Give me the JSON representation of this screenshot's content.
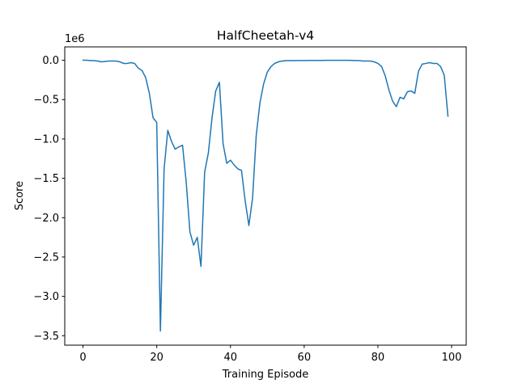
{
  "chart_data": {
    "type": "line",
    "title": "HalfCheetah-v4",
    "xlabel": "Training Episode",
    "ylabel": "Score",
    "y_scale_label": "1e6",
    "grid": false,
    "xlim": [
      -4.95,
      103.95
    ],
    "ylim": [
      -3.62,
      0.17
    ],
    "xticks": [
      0,
      20,
      40,
      60,
      80,
      100
    ],
    "xtick_labels": [
      "0",
      "20",
      "40",
      "60",
      "80",
      "100"
    ],
    "yticks": [
      0.0,
      -0.5,
      -1.0,
      -1.5,
      -2.0,
      -2.5,
      -3.0,
      -3.5
    ],
    "ytick_labels": [
      "0.0",
      "−0.5",
      "−1.0",
      "−1.5",
      "−2.0",
      "−2.5",
      "−3.0",
      "−3.5"
    ],
    "series": [
      {
        "name": "Score",
        "color": "#1f77b4",
        "x": [
          0,
          1,
          2,
          3,
          4,
          5,
          6,
          7,
          8,
          9,
          10,
          11,
          12,
          13,
          14,
          15,
          16,
          17,
          18,
          19,
          20,
          21,
          22,
          23,
          24,
          25,
          26,
          27,
          28,
          29,
          30,
          31,
          32,
          33,
          34,
          35,
          36,
          37,
          38,
          39,
          40,
          41,
          42,
          43,
          44,
          45,
          46,
          47,
          48,
          49,
          50,
          51,
          52,
          53,
          54,
          55,
          56,
          57,
          58,
          59,
          60,
          61,
          62,
          63,
          64,
          65,
          66,
          67,
          68,
          69,
          70,
          71,
          72,
          73,
          74,
          75,
          76,
          77,
          78,
          79,
          80,
          81,
          82,
          83,
          84,
          85,
          86,
          87,
          88,
          89,
          90,
          91,
          92,
          93,
          94,
          95,
          96,
          97,
          98,
          99
        ],
        "values": [
          0.0,
          0.0,
          -0.005,
          -0.005,
          -0.01,
          -0.02,
          -0.015,
          -0.01,
          -0.01,
          -0.01,
          -0.02,
          -0.04,
          -0.04,
          -0.03,
          -0.04,
          -0.1,
          -0.13,
          -0.22,
          -0.42,
          -0.73,
          -0.79,
          -3.44,
          -1.38,
          -0.89,
          -1.03,
          -1.13,
          -1.1,
          -1.08,
          -1.55,
          -2.18,
          -2.35,
          -2.25,
          -2.62,
          -1.42,
          -1.18,
          -0.73,
          -0.39,
          -0.28,
          -1.06,
          -1.31,
          -1.27,
          -1.33,
          -1.38,
          -1.4,
          -1.79,
          -2.1,
          -1.75,
          -0.95,
          -0.54,
          -0.3,
          -0.15,
          -0.08,
          -0.04,
          -0.02,
          -0.01,
          -0.005,
          -0.005,
          -0.005,
          -0.003,
          -0.003,
          -0.003,
          -0.003,
          -0.002,
          -0.002,
          -0.002,
          -0.002,
          -0.001,
          -0.001,
          -0.001,
          -0.001,
          -0.001,
          -0.001,
          -0.001,
          -0.002,
          -0.003,
          -0.005,
          -0.01,
          -0.01,
          -0.01,
          -0.02,
          -0.04,
          -0.08,
          -0.2,
          -0.38,
          -0.52,
          -0.59,
          -0.47,
          -0.49,
          -0.4,
          -0.39,
          -0.42,
          -0.14,
          -0.05,
          -0.04,
          -0.03,
          -0.04,
          -0.04,
          -0.08,
          -0.19,
          -0.71
        ]
      }
    ]
  }
}
